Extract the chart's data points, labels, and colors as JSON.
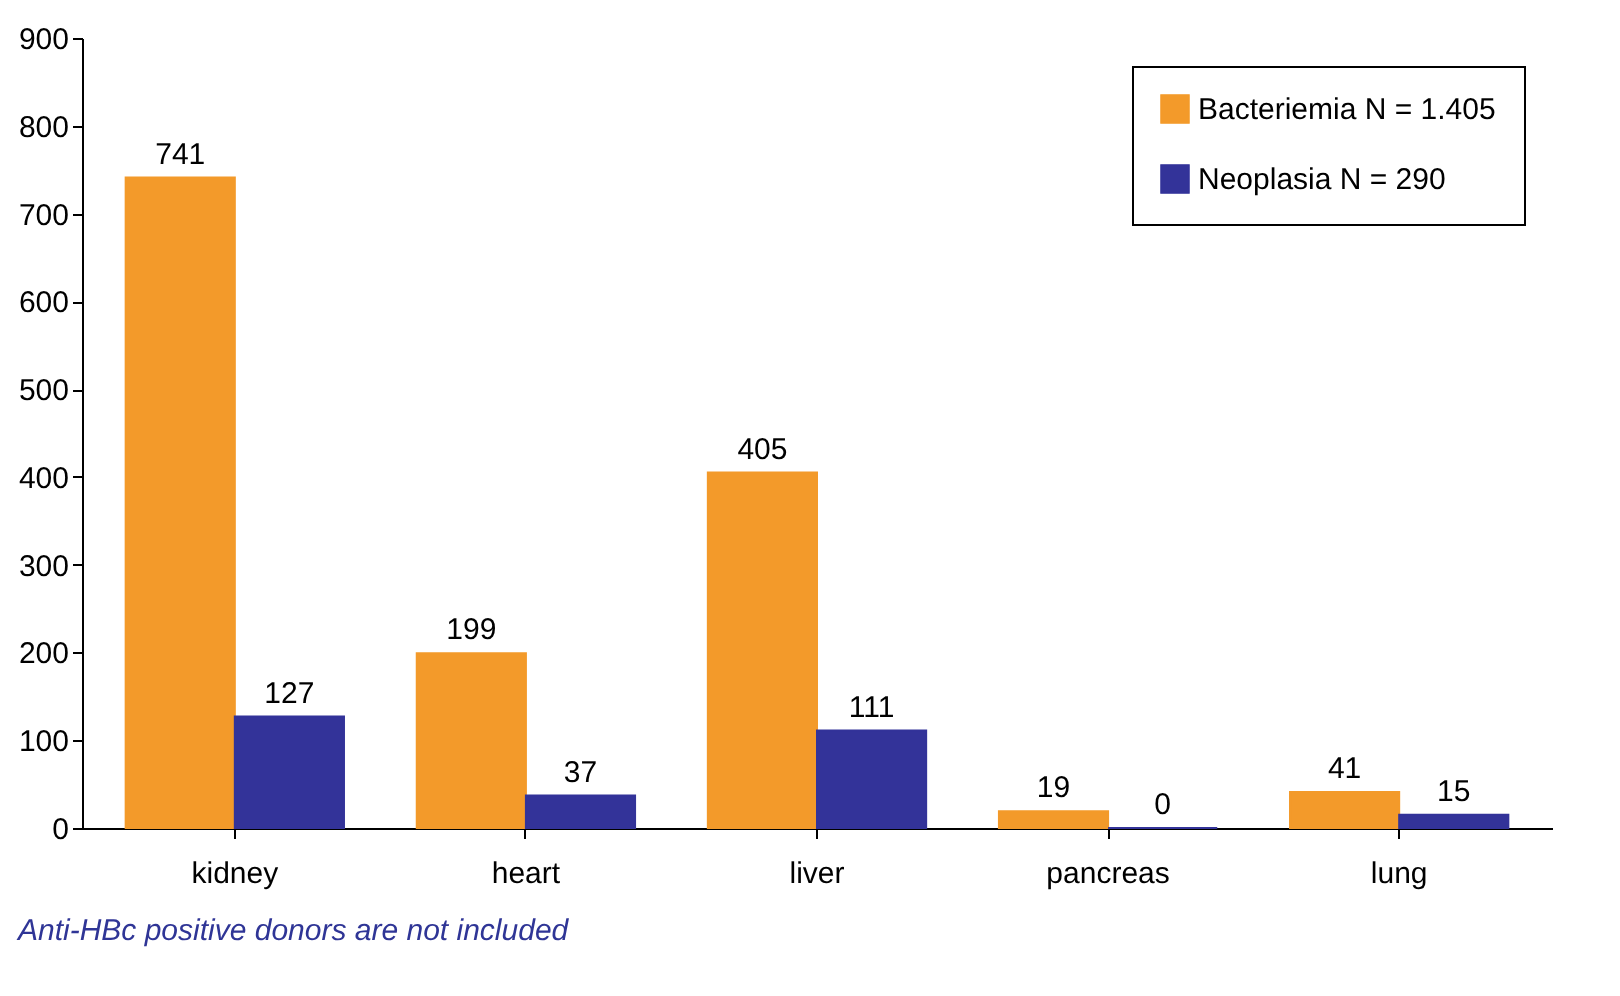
{
  "chart_data": {
    "type": "bar",
    "categories": [
      "kidney",
      "heart",
      "liver",
      "pancreas",
      "lung"
    ],
    "series": [
      {
        "name": "Bacteriemia N = 1.405",
        "color": "#f39a2a",
        "values": [
          741,
          199,
          405,
          19,
          41
        ]
      },
      {
        "name": "Neoplasia N = 290",
        "color": "#333399",
        "values": [
          127,
          37,
          111,
          0,
          15
        ]
      }
    ],
    "ylim": [
      0,
      900
    ],
    "yticks": [
      0,
      100,
      200,
      300,
      400,
      500,
      600,
      700,
      800,
      900
    ],
    "data_labels": true,
    "legend": "top right",
    "grid": false,
    "annotations": [
      "Anti-HBc positive donors are not included"
    ]
  }
}
